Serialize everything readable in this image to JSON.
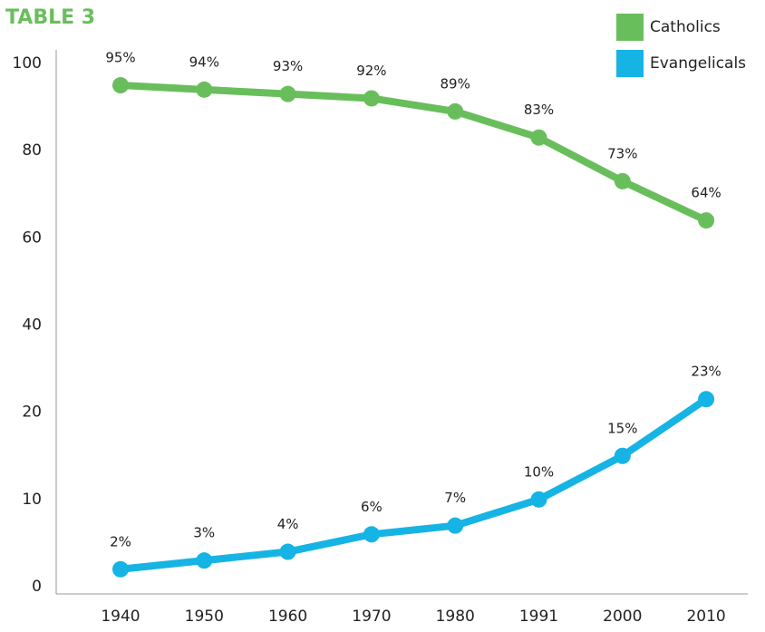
{
  "chart_data": {
    "type": "line",
    "title": "TABLE 3",
    "categories": [
      "1940",
      "1950",
      "1960",
      "1970",
      "1980",
      "1991",
      "2000",
      "2010"
    ],
    "series": [
      {
        "name": "Catholics",
        "color": "#69be5c",
        "values": [
          95,
          94,
          93,
          92,
          89,
          83,
          73,
          64
        ],
        "value_labels": [
          "95%",
          "94%",
          "93%",
          "92%",
          "89%",
          "83%",
          "73%",
          "64%"
        ]
      },
      {
        "name": "Evangelicals",
        "color": "#15b4e4",
        "values": [
          2,
          3,
          4,
          6,
          7,
          10,
          15,
          23
        ],
        "value_labels": [
          "2%",
          "3%",
          "4%",
          "6%",
          "7%",
          "10%",
          "15%",
          "23%"
        ]
      }
    ],
    "ylim": [
      0,
      100
    ],
    "yticks": [
      0,
      10,
      20,
      40,
      60,
      80,
      100
    ],
    "grid": false,
    "legend": "top-right"
  }
}
